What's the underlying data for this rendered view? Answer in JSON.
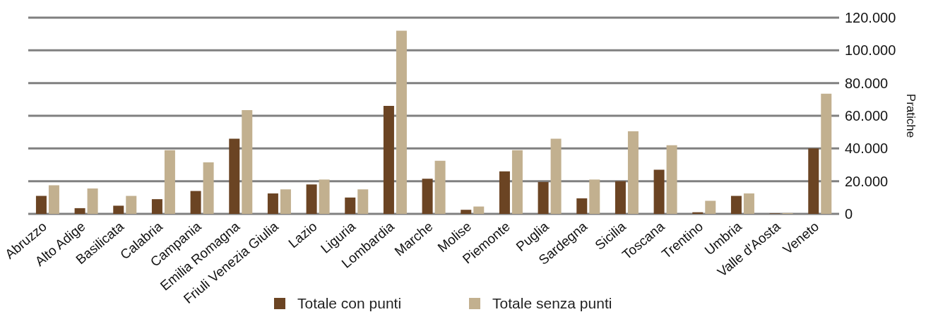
{
  "chart_data": {
    "type": "bar",
    "categories": [
      "Abruzzo",
      "Alto Adige",
      "Basilicata",
      "Calabria",
      "Campania",
      "Emilia Romagna",
      "Friuli Venezia Giulia",
      "Lazio",
      "Liguria",
      "Lombardia",
      "Marche",
      "Molise",
      "Piemonte",
      "Puglia",
      "Sardegna",
      "Sicilia",
      "Toscana",
      "Trentino",
      "Umbria",
      "Valle d'Aosta",
      "Veneto"
    ],
    "series": [
      {
        "name": "Totale con punti",
        "color": "#6b4423",
        "values": [
          11000,
          3500,
          5000,
          9000,
          14000,
          46000,
          12500,
          18000,
          10000,
          66000,
          21500,
          2500,
          26000,
          19500,
          9500,
          20000,
          27000,
          1000,
          11000,
          300,
          40000
        ]
      },
      {
        "name": "Totale senza punti",
        "color": "#c2b08f",
        "values": [
          17500,
          15500,
          11000,
          39000,
          31500,
          63500,
          15000,
          21000,
          15000,
          112000,
          32500,
          4500,
          39000,
          46000,
          21000,
          50500,
          42000,
          8000,
          12500,
          500,
          73500
        ]
      }
    ],
    "ylabel": "Pratiche",
    "ylim": [
      0,
      120000
    ],
    "yticks": [
      0,
      {
        "value": 20000,
        "label": "20.000"
      },
      {
        "value": 40000,
        "label": "40.000"
      },
      {
        "value": 60000,
        "label": "60.000"
      },
      {
        "value": 80000,
        "label": "80.000"
      },
      {
        "value": 100000,
        "label": "100.000"
      },
      {
        "value": 120000,
        "label": "120.000"
      }
    ],
    "grid": "y",
    "legend": "bottom"
  }
}
